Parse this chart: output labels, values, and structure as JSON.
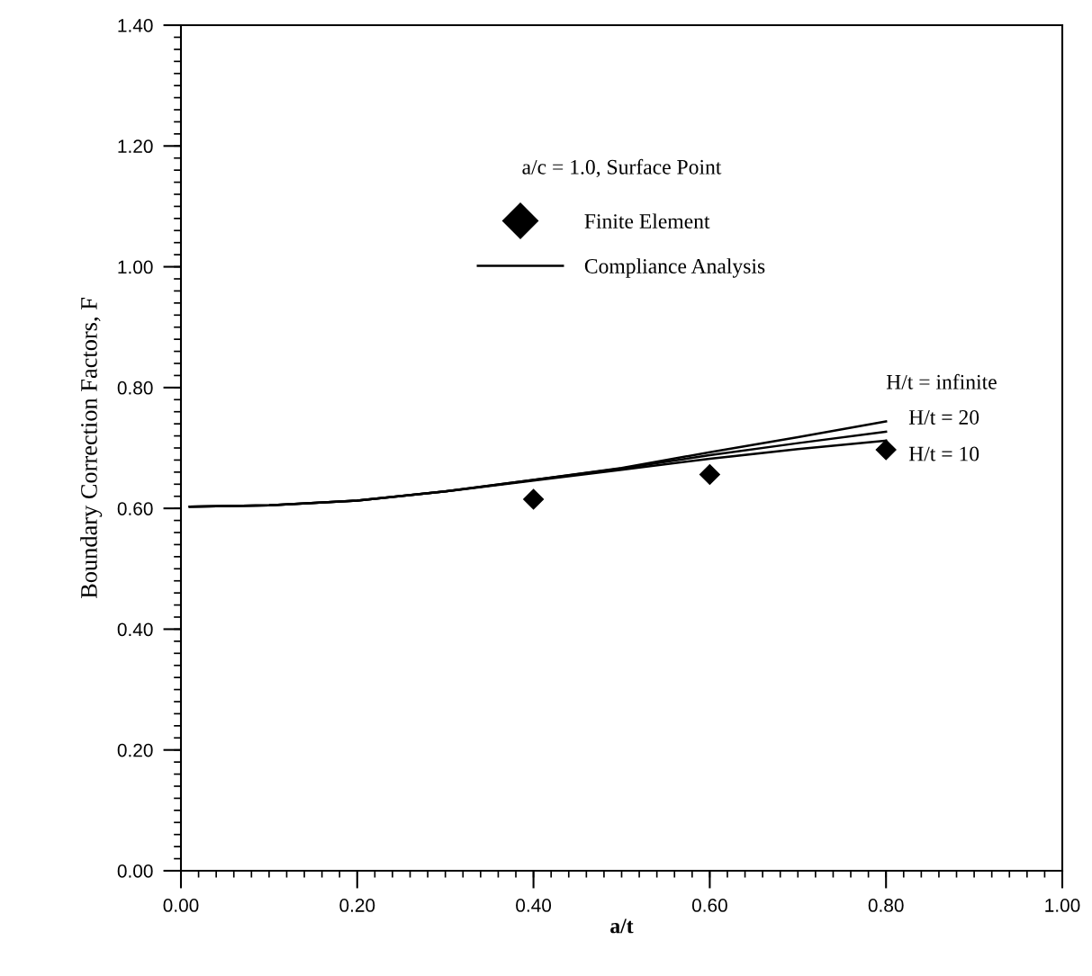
{
  "chart_data": {
    "type": "line",
    "xlabel": "a/t",
    "ylabel": "Boundary Correction Factors, F",
    "xlim": [
      0,
      1
    ],
    "ylim": [
      0,
      1.4
    ],
    "xticks": [
      {
        "value": 0,
        "label": "0.00"
      },
      {
        "value": 0.2,
        "label": "0.20"
      },
      {
        "value": 0.4,
        "label": "0.40"
      },
      {
        "value": 0.6,
        "label": "0.60"
      },
      {
        "value": 0.8,
        "label": "0.80"
      },
      {
        "value": 1,
        "label": "1.00"
      }
    ],
    "yticks": [
      {
        "value": 0,
        "label": "0.00"
      },
      {
        "value": 0.2,
        "label": "0.20"
      },
      {
        "value": 0.4,
        "label": "0.40"
      },
      {
        "value": 0.6,
        "label": "0.60"
      },
      {
        "value": 0.8,
        "label": "0.80"
      },
      {
        "value": 1,
        "label": "1.00"
      },
      {
        "value": 1.2,
        "label": "1.20"
      },
      {
        "value": 1.4,
        "label": "1.40"
      }
    ],
    "series": [
      {
        "name": "Finite Element",
        "type": "scatter",
        "marker": "diamond",
        "color": "#000000",
        "x": [
          0.4,
          0.6,
          0.8
        ],
        "values": [
          0.615,
          0.656,
          0.697
        ]
      },
      {
        "name": "Compliance Analysis",
        "color": "#000000",
        "x": [
          0.01,
          0.1,
          0.2,
          0.3,
          0.4,
          0.5,
          0.6,
          0.7,
          0.8
        ],
        "values": [
          0.603,
          0.605,
          0.613,
          0.628,
          0.647,
          0.667,
          0.693,
          0.718,
          0.744
        ]
      },
      {
        "color": "#000000",
        "x": [
          0.01,
          0.1,
          0.2,
          0.3,
          0.4,
          0.5,
          0.6,
          0.7,
          0.8
        ],
        "values": [
          0.603,
          0.605,
          0.613,
          0.628,
          0.647,
          0.666,
          0.688,
          0.708,
          0.727
        ]
      },
      {
        "color": "#000000",
        "x": [
          0.01,
          0.1,
          0.2,
          0.3,
          0.4,
          0.5,
          0.6,
          0.7,
          0.8
        ],
        "values": [
          0.603,
          0.605,
          0.613,
          0.628,
          0.646,
          0.664,
          0.682,
          0.698,
          0.712
        ]
      }
    ],
    "annotations": [
      "a/c = 1.0, Surface Point",
      "H/t = infinite",
      "H/t = 20",
      "H/t = 10"
    ],
    "legend": "top",
    "grid": false
  }
}
